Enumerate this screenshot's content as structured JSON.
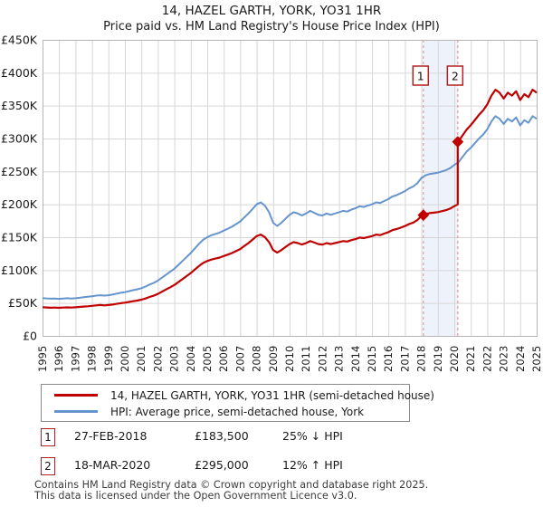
{
  "title": "14, HAZEL GARTH, YORK, YO31 1HR",
  "subtitle": "Price paid vs. HM Land Registry's House Price Index (HPI)",
  "colors": {
    "property_line": "#c00000",
    "hpi_line": "#6694ce",
    "event_dashed": "#e89a9a",
    "event_band": "#eef2fb",
    "marker_box_border": "#b22222",
    "grid": "#d6d6d6",
    "frame": "#b5b5b5"
  },
  "chart_data": {
    "type": "line",
    "title": "14, HAZEL GARTH, YORK, YO31 1HR",
    "subtitle": "Price paid vs. HM Land Registry's House Price Index (HPI)",
    "xlim": [
      1995,
      2025
    ],
    "ylim": [
      0,
      450000
    ],
    "grid": true,
    "x_ticks": [
      1995,
      1996,
      1997,
      1998,
      1999,
      2000,
      2001,
      2002,
      2003,
      2004,
      2005,
      2006,
      2007,
      2008,
      2009,
      2010,
      2011,
      2012,
      2013,
      2014,
      2015,
      2016,
      2017,
      2018,
      2019,
      2020,
      2021,
      2022,
      2023,
      2024,
      2025
    ],
    "y_ticks": [
      {
        "v": 450000,
        "label": "£450K"
      },
      {
        "v": 400000,
        "label": "£400K"
      },
      {
        "v": 350000,
        "label": "£350K"
      },
      {
        "v": 300000,
        "label": "£300K"
      },
      {
        "v": 250000,
        "label": "£250K"
      },
      {
        "v": 200000,
        "label": "£200K"
      },
      {
        "v": 150000,
        "label": "£150K"
      },
      {
        "v": 100000,
        "label": "£100K"
      },
      {
        "v": 50000,
        "label": "£50K"
      },
      {
        "v": 0,
        "label": "£0"
      }
    ],
    "x_start": 1995,
    "x_step": 0.25,
    "series": [
      {
        "name": "14, HAZEL GARTH, YORK, YO31 1HR (semi-detached house)",
        "color": "#c00000",
        "derived_from_hpi": true
      },
      {
        "name": "HPI: Average price, semi-detached house, York",
        "color": "#6694ce",
        "values": [
          57500,
          57000,
          56500,
          56800,
          56300,
          56800,
          57200,
          56800,
          57300,
          58000,
          58800,
          59400,
          60200,
          61200,
          61800,
          61200,
          61800,
          62800,
          64200,
          65500,
          66500,
          68000,
          69500,
          70800,
          72500,
          75000,
          78000,
          80500,
          84000,
          88500,
          93000,
          97500,
          102000,
          108000,
          114000,
          120000,
          126000,
          133000,
          140000,
          146000,
          150000,
          153000,
          155000,
          157000,
          160000,
          163000,
          166000,
          170000,
          174000,
          180000,
          186000,
          193000,
          200000,
          203000,
          198000,
          188000,
          172000,
          167000,
          172000,
          178000,
          184000,
          188000,
          186000,
          183000,
          186000,
          190000,
          187000,
          184000,
          183000,
          186000,
          184000,
          186000,
          188000,
          190000,
          189000,
          192000,
          194000,
          197000,
          196000,
          198000,
          200000,
          203000,
          202000,
          205000,
          208000,
          212000,
          214000,
          217000,
          220000,
          224000,
          227000,
          232000,
          240000,
          244000,
          246000,
          247000,
          248000,
          250000,
          252000,
          255000,
          260000,
          264000,
          272000,
          280000,
          286000,
          293000,
          300000,
          306000,
          314000,
          326000,
          334000,
          330000,
          322000,
          330000,
          326000,
          332000,
          320000,
          328000,
          324000,
          334000,
          330000
        ]
      }
    ],
    "transactions": [
      {
        "label": "1",
        "date": "27-FEB-2018",
        "x": 2018.12,
        "price": 183500,
        "price_label": "£183,500",
        "delta_label": "25% ↓ HPI"
      },
      {
        "label": "2",
        "date": "18-MAR-2020",
        "x": 2020.21,
        "price": 295000,
        "price_label": "£295,000",
        "delta_label": "12% ↑ HPI"
      }
    ]
  },
  "footer": {
    "line1": "Contains HM Land Registry data © Crown copyright and database right 2025.",
    "line2": "This data is licensed under the Open Government Licence v3.0."
  }
}
